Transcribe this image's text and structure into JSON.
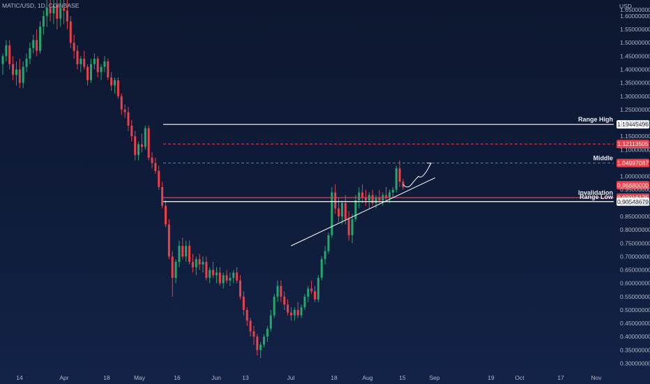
{
  "header": {
    "symbol": "MATIC/USD, 1D, COINBASE",
    "currency": "USD"
  },
  "colors": {
    "up": "#22a86b",
    "down": "#e8414b",
    "level_line": "#ffffff",
    "dashed_level": "#e8414b",
    "axis_text": "#aeb6c8",
    "tag_red": "#e8414b",
    "tag_white": "#ffffff"
  },
  "chart_data": {
    "type": "candlestick",
    "y_scale": "linear",
    "ylim": [
      0.27,
      1.66
    ],
    "x_ticks": [
      "14",
      "Apr",
      "18",
      "May",
      "16",
      "Jun",
      "13",
      "Jul",
      "18",
      "Aug",
      "15",
      "Sep",
      "19",
      "Oct",
      "17",
      "Nov"
    ],
    "y_ticks": [
      "1.60000000",
      "1.55000000",
      "1.50000000",
      "1.45000000",
      "1.40000000",
      "1.35000000",
      "1.30000000",
      "1.25000000",
      "1.20000000",
      "1.15000000",
      "1.10000000",
      "1.00000000",
      "0.95000000",
      "0.90000000",
      "0.85000000",
      "0.80000000",
      "0.75000000",
      "0.70000000",
      "0.65000000",
      "0.60000000",
      "0.55000000",
      "0.50000000",
      "0.45000000",
      "0.40000000",
      "0.35000000",
      "0.30000000"
    ],
    "top_clipped_label": "1.65000000",
    "levels": [
      {
        "name": "Range High",
        "value": 1.19445496,
        "style": "solid",
        "color": "#ffffff",
        "tag": "1.19445496"
      },
      {
        "name": "",
        "value": 1.12113505,
        "style": "dashed",
        "color": "#e8414b",
        "tag": "1.12113505"
      },
      {
        "name": "Middle",
        "value": 1.04997087,
        "style": "dashed",
        "color": "#e8414b",
        "tag": "1.04997087"
      },
      {
        "name": "",
        "value": 0.9668,
        "style": "none",
        "color": "#e8414b",
        "tag": "0.96680000"
      },
      {
        "name": "Invalidation",
        "value": 0.92016175,
        "style": "solid",
        "color": "#e8414b",
        "tag": "0.92016175"
      },
      {
        "name": "Range Low",
        "value": 0.90548679,
        "style": "solid",
        "color": "#ffffff",
        "tag": "0.90548679"
      }
    ],
    "ohlc": [
      [
        1.42,
        1.46,
        1.38,
        1.45
      ],
      [
        1.45,
        1.51,
        1.43,
        1.49
      ],
      [
        1.49,
        1.51,
        1.4,
        1.42
      ],
      [
        1.42,
        1.45,
        1.36,
        1.38
      ],
      [
        1.38,
        1.43,
        1.34,
        1.4
      ],
      [
        1.4,
        1.44,
        1.33,
        1.35
      ],
      [
        1.35,
        1.43,
        1.33,
        1.41
      ],
      [
        1.41,
        1.46,
        1.39,
        1.44
      ],
      [
        1.44,
        1.5,
        1.42,
        1.48
      ],
      [
        1.48,
        1.53,
        1.46,
        1.51
      ],
      [
        1.51,
        1.55,
        1.45,
        1.47
      ],
      [
        1.47,
        1.58,
        1.46,
        1.56
      ],
      [
        1.56,
        1.62,
        1.53,
        1.6
      ],
      [
        1.6,
        1.66,
        1.56,
        1.63
      ],
      [
        1.63,
        1.66,
        1.58,
        1.61
      ],
      [
        1.61,
        1.66,
        1.57,
        1.64
      ],
      [
        1.64,
        1.66,
        1.55,
        1.59
      ],
      [
        1.59,
        1.66,
        1.56,
        1.63
      ],
      [
        1.63,
        1.66,
        1.57,
        1.62
      ],
      [
        1.62,
        1.66,
        1.55,
        1.58
      ],
      [
        1.58,
        1.6,
        1.48,
        1.5
      ],
      [
        1.5,
        1.53,
        1.44,
        1.47
      ],
      [
        1.47,
        1.49,
        1.4,
        1.42
      ],
      [
        1.42,
        1.45,
        1.39,
        1.44
      ],
      [
        1.44,
        1.47,
        1.4,
        1.41
      ],
      [
        1.41,
        1.42,
        1.34,
        1.36
      ],
      [
        1.36,
        1.44,
        1.35,
        1.42
      ],
      [
        1.42,
        1.46,
        1.4,
        1.44
      ],
      [
        1.44,
        1.45,
        1.37,
        1.39
      ],
      [
        1.39,
        1.42,
        1.36,
        1.41
      ],
      [
        1.41,
        1.45,
        1.39,
        1.43
      ],
      [
        1.43,
        1.44,
        1.36,
        1.37
      ],
      [
        1.37,
        1.39,
        1.32,
        1.34
      ],
      [
        1.34,
        1.37,
        1.31,
        1.36
      ],
      [
        1.36,
        1.37,
        1.29,
        1.3
      ],
      [
        1.3,
        1.31,
        1.23,
        1.25
      ],
      [
        1.25,
        1.27,
        1.22,
        1.24
      ],
      [
        1.24,
        1.26,
        1.17,
        1.19
      ],
      [
        1.19,
        1.21,
        1.13,
        1.15
      ],
      [
        1.15,
        1.17,
        1.06,
        1.08
      ],
      [
        1.08,
        1.13,
        1.06,
        1.12
      ],
      [
        1.12,
        1.16,
        1.09,
        1.11
      ],
      [
        1.11,
        1.19,
        1.1,
        1.18
      ],
      [
        1.18,
        1.19,
        1.06,
        1.07
      ],
      [
        1.07,
        1.09,
        1.03,
        1.05
      ],
      [
        1.05,
        1.07,
        1.01,
        1.02
      ],
      [
        1.02,
        1.04,
        0.95,
        0.96
      ],
      [
        0.96,
        0.98,
        0.88,
        0.89
      ],
      [
        0.89,
        0.91,
        0.81,
        0.82
      ],
      [
        0.82,
        0.84,
        0.69,
        0.7
      ],
      [
        0.7,
        0.72,
        0.55,
        0.62
      ],
      [
        0.62,
        0.69,
        0.6,
        0.68
      ],
      [
        0.68,
        0.76,
        0.66,
        0.74
      ],
      [
        0.74,
        0.77,
        0.69,
        0.7
      ],
      [
        0.7,
        0.76,
        0.68,
        0.74
      ],
      [
        0.74,
        0.76,
        0.67,
        0.68
      ],
      [
        0.68,
        0.71,
        0.64,
        0.66
      ],
      [
        0.66,
        0.7,
        0.63,
        0.69
      ],
      [
        0.69,
        0.71,
        0.65,
        0.67
      ],
      [
        0.67,
        0.7,
        0.64,
        0.68
      ],
      [
        0.68,
        0.7,
        0.61,
        0.62
      ],
      [
        0.62,
        0.66,
        0.6,
        0.65
      ],
      [
        0.65,
        0.68,
        0.62,
        0.63
      ],
      [
        0.63,
        0.66,
        0.6,
        0.64
      ],
      [
        0.64,
        0.66,
        0.59,
        0.6
      ],
      [
        0.6,
        0.64,
        0.58,
        0.63
      ],
      [
        0.63,
        0.65,
        0.6,
        0.61
      ],
      [
        0.61,
        0.64,
        0.59,
        0.62
      ],
      [
        0.62,
        0.65,
        0.6,
        0.64
      ],
      [
        0.64,
        0.66,
        0.6,
        0.61
      ],
      [
        0.61,
        0.63,
        0.54,
        0.55
      ],
      [
        0.55,
        0.57,
        0.48,
        0.5
      ],
      [
        0.5,
        0.51,
        0.44,
        0.46
      ],
      [
        0.46,
        0.47,
        0.4,
        0.42
      ],
      [
        0.42,
        0.44,
        0.37,
        0.4
      ],
      [
        0.4,
        0.41,
        0.33,
        0.35
      ],
      [
        0.35,
        0.38,
        0.32,
        0.37
      ],
      [
        0.37,
        0.41,
        0.36,
        0.4
      ],
      [
        0.4,
        0.44,
        0.38,
        0.43
      ],
      [
        0.43,
        0.5,
        0.42,
        0.48
      ],
      [
        0.48,
        0.56,
        0.47,
        0.55
      ],
      [
        0.55,
        0.61,
        0.53,
        0.59
      ],
      [
        0.59,
        0.61,
        0.53,
        0.55
      ],
      [
        0.55,
        0.57,
        0.5,
        0.52
      ],
      [
        0.52,
        0.54,
        0.48,
        0.49
      ],
      [
        0.49,
        0.51,
        0.46,
        0.48
      ],
      [
        0.48,
        0.51,
        0.46,
        0.5
      ],
      [
        0.5,
        0.53,
        0.47,
        0.48
      ],
      [
        0.48,
        0.52,
        0.47,
        0.51
      ],
      [
        0.51,
        0.56,
        0.5,
        0.55
      ],
      [
        0.55,
        0.59,
        0.53,
        0.58
      ],
      [
        0.58,
        0.61,
        0.56,
        0.57
      ],
      [
        0.57,
        0.59,
        0.53,
        0.54
      ],
      [
        0.54,
        0.63,
        0.53,
        0.62
      ],
      [
        0.62,
        0.7,
        0.61,
        0.69
      ],
      [
        0.69,
        0.74,
        0.67,
        0.72
      ],
      [
        0.72,
        0.79,
        0.71,
        0.78
      ],
      [
        0.78,
        0.96,
        0.77,
        0.94
      ],
      [
        0.94,
        0.97,
        0.86,
        0.88
      ],
      [
        0.88,
        0.92,
        0.83,
        0.85
      ],
      [
        0.85,
        0.91,
        0.82,
        0.9
      ],
      [
        0.9,
        0.93,
        0.82,
        0.84
      ],
      [
        0.84,
        0.87,
        0.76,
        0.78
      ],
      [
        0.78,
        0.86,
        0.75,
        0.84
      ],
      [
        0.84,
        0.93,
        0.83,
        0.91
      ],
      [
        0.91,
        0.96,
        0.88,
        0.94
      ],
      [
        0.94,
        0.97,
        0.9,
        0.92
      ],
      [
        0.92,
        0.95,
        0.89,
        0.91
      ],
      [
        0.91,
        0.94,
        0.88,
        0.93
      ],
      [
        0.93,
        0.95,
        0.89,
        0.9
      ],
      [
        0.9,
        0.93,
        0.88,
        0.92
      ],
      [
        0.92,
        0.95,
        0.9,
        0.91
      ],
      [
        0.91,
        0.94,
        0.89,
        0.93
      ],
      [
        0.93,
        0.96,
        0.91,
        0.92
      ],
      [
        0.92,
        0.95,
        0.9,
        0.94
      ],
      [
        0.94,
        0.96,
        0.92,
        0.95
      ],
      [
        0.95,
        1.04,
        0.94,
        1.03
      ],
      [
        1.03,
        1.06,
        0.96,
        0.98
      ],
      [
        0.98,
        0.99,
        0.95,
        0.96
      ]
    ],
    "trendline": [
      [
        0.72,
        0.74
      ],
      [
        1.005,
        0.995
      ]
    ],
    "projection_arrow": [
      [
        0.955,
        0.965
      ],
      [
        0.975,
        1.045
      ]
    ]
  }
}
